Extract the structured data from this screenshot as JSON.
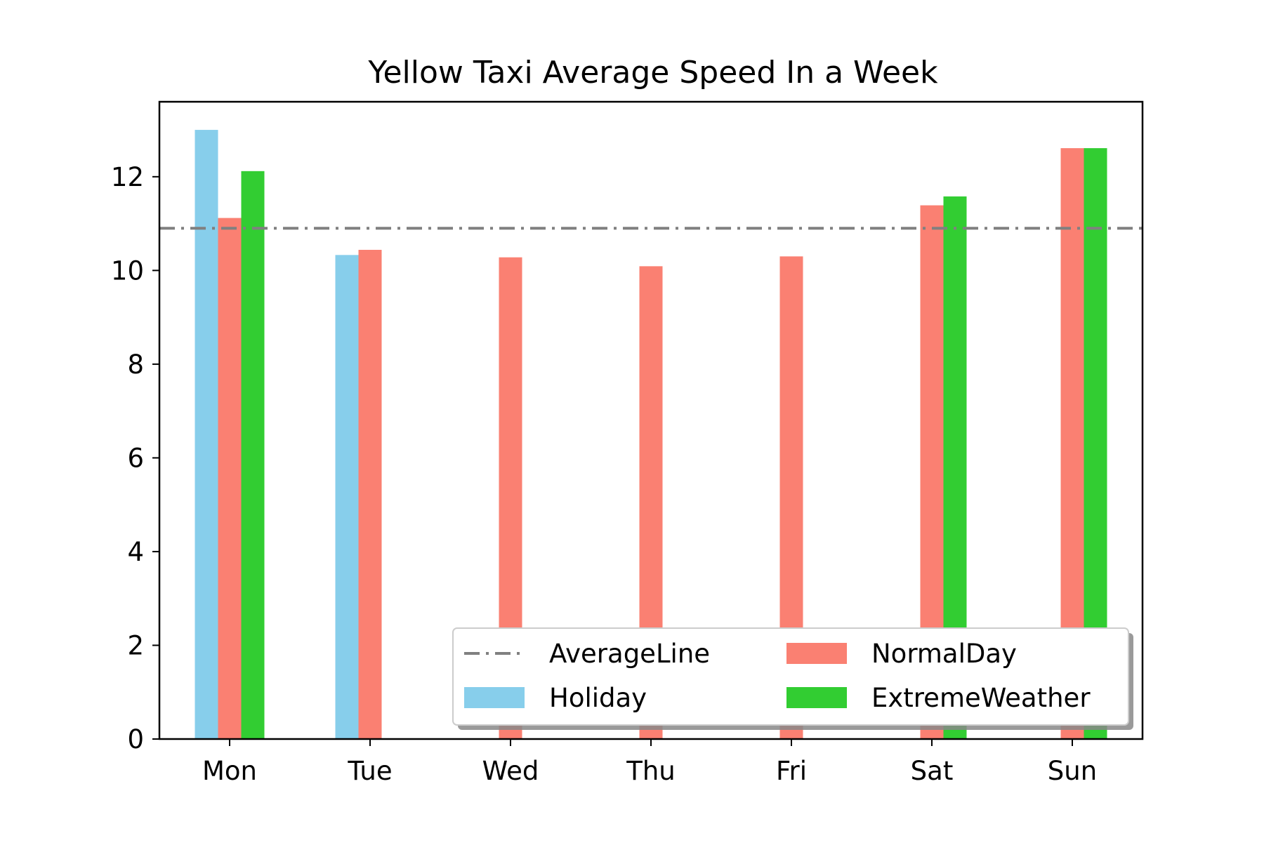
{
  "chart_data": {
    "type": "bar",
    "title": "Yellow Taxi Average Speed In a Week",
    "xlabel": "",
    "ylabel": "",
    "categories": [
      "Mon",
      "Tue",
      "Wed",
      "Thu",
      "Fri",
      "Sat",
      "Sun"
    ],
    "ylim": [
      0,
      13.6
    ],
    "yticks": [
      0,
      2,
      4,
      6,
      8,
      10,
      12
    ],
    "grid": false,
    "legend_position": "lower-right",
    "average_line": {
      "name": "AverageLine",
      "value": 10.9,
      "color": "#808080",
      "style": "dash-dot"
    },
    "series": [
      {
        "name": "Holiday",
        "color": "#87ceeb",
        "values": [
          13.0,
          10.33,
          null,
          null,
          null,
          null,
          null
        ]
      },
      {
        "name": "NormalDay",
        "color": "#fa8072",
        "values": [
          11.12,
          10.44,
          10.28,
          10.09,
          10.3,
          11.39,
          12.61
        ]
      },
      {
        "name": "ExtremeWeather",
        "color": "#32cd32",
        "values": [
          12.12,
          null,
          null,
          null,
          null,
          11.58,
          12.61
        ]
      }
    ]
  }
}
